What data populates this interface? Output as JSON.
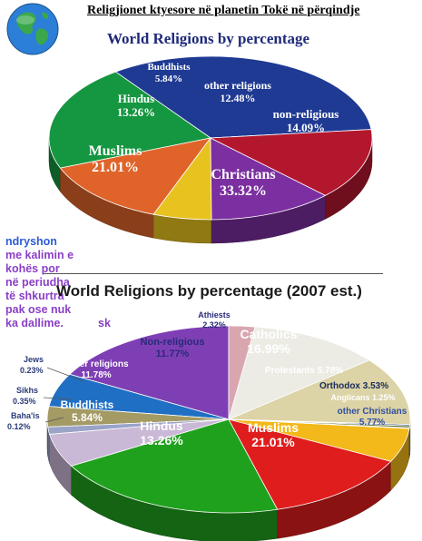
{
  "page": {
    "title": "Religjionet ktyesore në planetin Tokë në përqindje",
    "note_lines": [
      "ndryshon",
      "me kalimin e",
      "kohës por",
      "në periudha",
      "të shkurtra",
      "pak ose nuk",
      "ka dallime.",
      "sk"
    ]
  },
  "chart_data": [
    {
      "type": "pie",
      "title": "World Religions by percentage",
      "slices": [
        {
          "label": "Christians",
          "value": 33.32,
          "display": "33.32%",
          "color": "#1f3a93"
        },
        {
          "label": "Muslims",
          "value": 21.01,
          "display": "21.01%",
          "color": "#159640"
        },
        {
          "label": "Hindus",
          "value": 13.26,
          "display": "13.26%",
          "color": "#e0642a"
        },
        {
          "label": "Buddhists",
          "value": 5.84,
          "display": "5.84%",
          "color": "#e8c21e"
        },
        {
          "label": "other religions",
          "value": 12.48,
          "display": "12.48%",
          "color": "#7b2fa0"
        },
        {
          "label": "non-religious",
          "value": 14.09,
          "display": "14.09%",
          "color": "#b3172e"
        }
      ]
    },
    {
      "type": "pie",
      "title": "World Religions by percentage (2007 est.)",
      "slices": [
        {
          "label": "Catholics",
          "value": 16.99,
          "display": "16.99%",
          "color": "#7e3fb4"
        },
        {
          "label": "Protestants",
          "value": 5.78,
          "display": "5.78%",
          "color": "#1f6fc4"
        },
        {
          "label": "Orthodox",
          "value": 3.53,
          "display": "3.53%",
          "color": "#a39a64"
        },
        {
          "label": "Anglicans",
          "value": 1.25,
          "display": "1.25%",
          "color": "#9aa3c8"
        },
        {
          "label": "other Christians",
          "value": 5.77,
          "display": "5.77%",
          "color": "#c9b8d6"
        },
        {
          "label": "Muslims",
          "value": 21.01,
          "display": "21.01%",
          "color": "#20a11e"
        },
        {
          "label": "Hindus",
          "value": 13.26,
          "display": "13.26%",
          "color": "#df1d1d"
        },
        {
          "label": "Buddhists",
          "value": 5.84,
          "display": "5.84%",
          "color": "#f3b819"
        },
        {
          "label": "Baha'is",
          "value": 0.12,
          "display": "0.12%",
          "color": "#5c8a9a"
        },
        {
          "label": "Sikhs",
          "value": 0.35,
          "display": "0.35%",
          "color": "#6a7a3a"
        },
        {
          "label": "Jews",
          "value": 0.23,
          "display": "0.23%",
          "color": "#3a5a8a"
        },
        {
          "label": "Other religions",
          "value": 11.78,
          "display": "11.78%",
          "color": "#dcd3a6"
        },
        {
          "label": "Non-religious",
          "value": 11.77,
          "display": "11.77%",
          "color": "#ecebe4"
        },
        {
          "label": "Athiests",
          "value": 2.32,
          "display": "2.32%",
          "color": "#d9a6b0"
        }
      ]
    }
  ]
}
